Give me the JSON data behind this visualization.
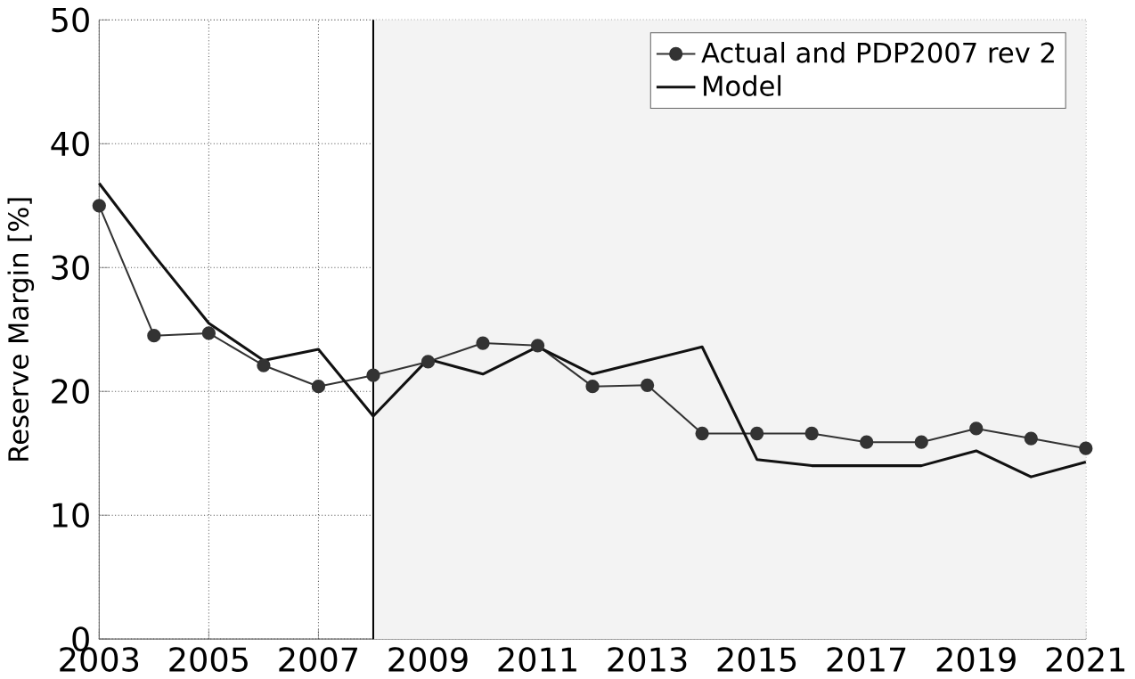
{
  "chart_data": {
    "type": "line",
    "ylabel": "Reserve Margin [%]",
    "x": [
      2003,
      2004,
      2005,
      2006,
      2007,
      2008,
      2009,
      2010,
      2011,
      2012,
      2013,
      2014,
      2015,
      2016,
      2017,
      2018,
      2019,
      2020,
      2021
    ],
    "series": [
      {
        "name": "Actual and PDP2007 rev 2",
        "color": "#333333",
        "marker": "circle",
        "values": [
          35,
          24.5,
          24.7,
          22.1,
          20.4,
          21.3,
          22.4,
          23.9,
          23.7,
          20.4,
          20.5,
          16.6,
          16.6,
          16.6,
          15.9,
          15.9,
          17.0,
          16.2,
          15.4
        ]
      },
      {
        "name": "Model",
        "color": "#111111",
        "marker": "none",
        "values": [
          36.8,
          31,
          25.5,
          22.5,
          23.4,
          18.0,
          22.6,
          21.4,
          23.6,
          21.4,
          22.5,
          23.6,
          14.5,
          14.0,
          14.0,
          14.0,
          15.2,
          13.1,
          14.3
        ]
      }
    ],
    "xlim": [
      2003,
      2021
    ],
    "xticks": [
      2003,
      2005,
      2007,
      2009,
      2011,
      2013,
      2015,
      2017,
      2019,
      2021
    ],
    "ylim": [
      0,
      50
    ],
    "yticks": [
      0,
      10,
      20,
      30,
      40,
      50
    ],
    "ref_lines": [
      {
        "axis": "x",
        "value": 2008,
        "color": "#000000"
      }
    ],
    "bands": [
      {
        "axis": "x",
        "from": 2008,
        "to": 2021,
        "color": "#f3f3f3"
      }
    ],
    "grid": true,
    "legend": "top right",
    "line_style": "solid"
  }
}
